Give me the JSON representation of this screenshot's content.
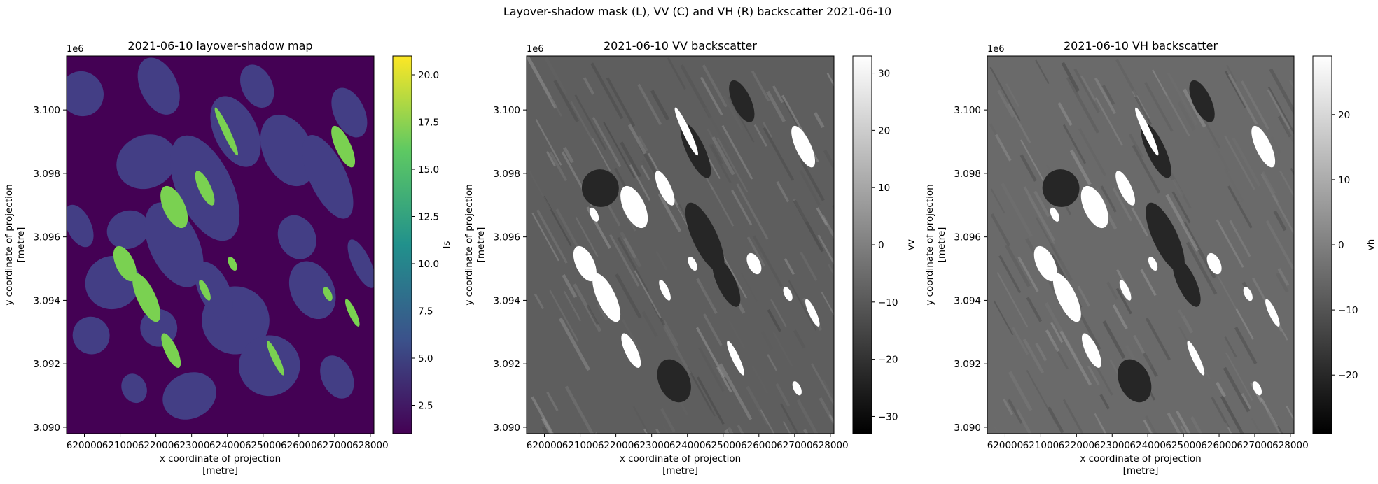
{
  "suptitle": "Layover-shadow mask (L), VV (C) and VH (R) backscatter 2021-06-10",
  "colors": {
    "viridis": [
      "#440154",
      "#3b528b",
      "#21918c",
      "#5ec962",
      "#fde725"
    ],
    "mask_background": "#440154",
    "mask_patch": "#433e85",
    "mask_green": "#7ad151",
    "nodata_white": "#ffffff"
  },
  "chart_data": [
    {
      "type": "heatmap",
      "title": "2021-06-10 layover-shadow map",
      "xlabel": "x coordinate of projection",
      "xlabel_unit": "[metre]",
      "ylabel": "y coordinate of projection",
      "ylabel_unit": "[metre]",
      "y_offset_label": "1e6",
      "xlim": [
        619500,
        628100
      ],
      "ylim": [
        3.0898,
        3.1017
      ],
      "x_ticks": [
        620000,
        621000,
        622000,
        623000,
        624000,
        625000,
        626000,
        627000,
        628000
      ],
      "x_tick_labels": [
        "620000",
        "621000",
        "622000",
        "623000",
        "624000",
        "625000",
        "626000",
        "627000",
        "628000"
      ],
      "y_ticks": [
        3.09,
        3.092,
        3.094,
        3.096,
        3.098,
        3.1
      ],
      "y_tick_labels": [
        "3.090",
        "3.092",
        "3.094",
        "3.096",
        "3.098",
        "3.100"
      ],
      "colorbar": {
        "label": "ls",
        "cmap": "viridis",
        "range": [
          1,
          21
        ],
        "ticks": [
          2.5,
          5.0,
          7.5,
          10.0,
          12.5,
          15.0,
          17.5,
          20.0
        ],
        "tick_labels": [
          "2.5",
          "5.0",
          "7.5",
          "10.0",
          "12.5",
          "15.0",
          "17.5",
          "20.0"
        ]
      }
    },
    {
      "type": "heatmap",
      "title": "2021-06-10 VV backscatter",
      "xlabel": "x coordinate of projection",
      "xlabel_unit": "[metre]",
      "ylabel": "y coordinate of projection",
      "ylabel_unit": "[metre]",
      "y_offset_label": "1e6",
      "xlim": [
        619500,
        628100
      ],
      "ylim": [
        3.0898,
        3.1017
      ],
      "x_ticks": [
        620000,
        621000,
        622000,
        623000,
        624000,
        625000,
        626000,
        627000,
        628000
      ],
      "x_tick_labels": [
        "620000",
        "621000",
        "622000",
        "623000",
        "624000",
        "625000",
        "626000",
        "627000",
        "628000"
      ],
      "y_ticks": [
        3.09,
        3.092,
        3.094,
        3.096,
        3.098,
        3.1
      ],
      "y_tick_labels": [
        "3.090",
        "3.092",
        "3.094",
        "3.096",
        "3.098",
        "3.100"
      ],
      "colorbar": {
        "label": "vv",
        "cmap": "gray",
        "range": [
          -33,
          33
        ],
        "ticks": [
          -30,
          -20,
          -10,
          0,
          10,
          20,
          30
        ],
        "tick_labels": [
          "−30",
          "−20",
          "−10",
          "0",
          "10",
          "20",
          "30"
        ]
      }
    },
    {
      "type": "heatmap",
      "title": "2021-06-10 VH backscatter",
      "xlabel": "x coordinate of projection",
      "xlabel_unit": "[metre]",
      "ylabel": "y coordinate of projection",
      "ylabel_unit": "[metre]",
      "y_offset_label": "1e6",
      "xlim": [
        619500,
        628100
      ],
      "ylim": [
        3.0898,
        3.1017
      ],
      "x_ticks": [
        620000,
        621000,
        622000,
        623000,
        624000,
        625000,
        626000,
        627000,
        628000
      ],
      "x_tick_labels": [
        "620000",
        "621000",
        "622000",
        "623000",
        "624000",
        "625000",
        "626000",
        "627000",
        "628000"
      ],
      "y_ticks": [
        3.09,
        3.092,
        3.094,
        3.096,
        3.098,
        3.1
      ],
      "y_tick_labels": [
        "3.090",
        "3.092",
        "3.094",
        "3.096",
        "3.098",
        "3.100"
      ],
      "colorbar": {
        "label": "vh",
        "cmap": "gray",
        "range": [
          -29,
          29
        ],
        "ticks": [
          -20,
          -10,
          0,
          10,
          20
        ],
        "tick_labels": [
          "−20",
          "−10",
          "0",
          "10",
          "20"
        ]
      }
    }
  ]
}
